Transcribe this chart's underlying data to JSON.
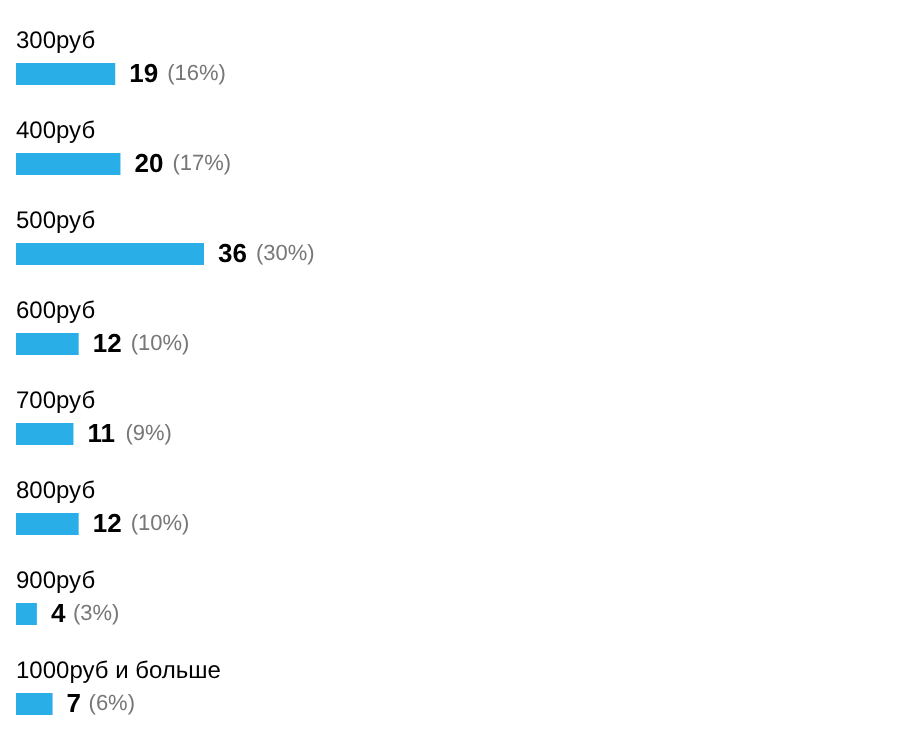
{
  "chart_data": {
    "type": "bar",
    "orientation": "horizontal",
    "data_labels": true,
    "categories": [
      "300руб",
      "400руб",
      "500руб",
      "600руб",
      "700руб",
      "800руб",
      "900руб",
      "1000руб и больше"
    ],
    "values": [
      19,
      20,
      36,
      12,
      11,
      12,
      4,
      7
    ],
    "annotations": [
      {
        "text": "(16%)",
        "x": 19,
        "y": "300руб"
      },
      {
        "text": "(17%)",
        "x": 20,
        "y": "400руб"
      },
      {
        "text": "(30%)",
        "x": 36,
        "y": "500руб"
      },
      {
        "text": "(10%)",
        "x": 12,
        "y": "600руб"
      },
      {
        "text": "(9%)",
        "x": 11,
        "y": "700руб"
      },
      {
        "text": "(10%)",
        "x": 12,
        "y": "800руб"
      },
      {
        "text": "(3%)",
        "x": 4,
        "y": "900руб"
      },
      {
        "text": "(6%)",
        "x": 7,
        "y": "1000руб и больше"
      }
    ],
    "color": "#2aaee8"
  }
}
